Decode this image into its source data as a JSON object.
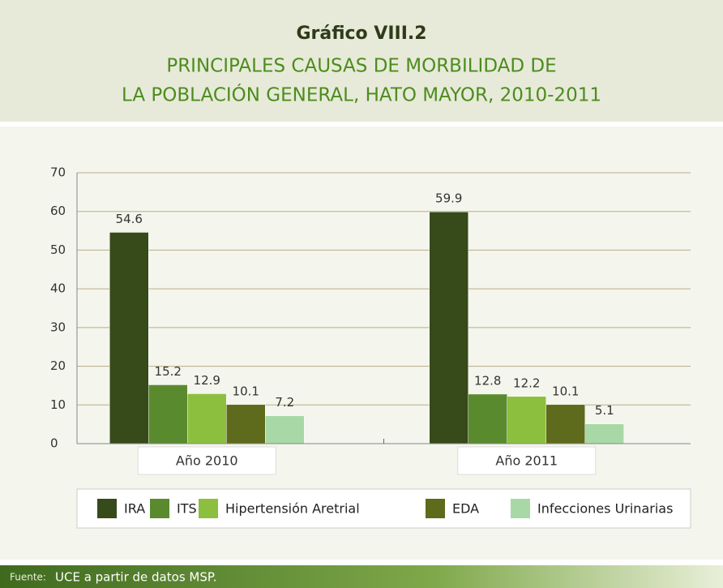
{
  "chart_data": {
    "type": "bar",
    "title": "Gráfico VIII.2",
    "subtitle": [
      "PRINCIPALES CAUSAS DE MORBILIDAD DE",
      "LA POBLACIÓN GENERAL, HATO MAYOR, 2010-2011"
    ],
    "categories": [
      "Año 2010",
      "Año 2011"
    ],
    "series": [
      {
        "name": "IRA",
        "color": "#364a1a",
        "values": [
          54.6,
          59.9
        ]
      },
      {
        "name": "ITS",
        "color": "#5a8a2e",
        "values": [
          15.2,
          12.8
        ]
      },
      {
        "name": "Hipertensión Aretrial",
        "color": "#8cbf3e",
        "values": [
          12.9,
          12.2
        ]
      },
      {
        "name": "EDA",
        "color": "#5e6a1c",
        "values": [
          10.1,
          10.1
        ]
      },
      {
        "name": "Infecciones Urinarias",
        "color": "#a8d8a6",
        "values": [
          7.2,
          5.1
        ]
      }
    ],
    "ylim": [
      0,
      70
    ],
    "yticks": [
      0,
      10,
      20,
      30,
      40,
      50,
      60,
      70
    ],
    "grid": true,
    "legend": "bottom",
    "source_label": "Fuente:",
    "source": "UCE a partir de datos MSP."
  }
}
